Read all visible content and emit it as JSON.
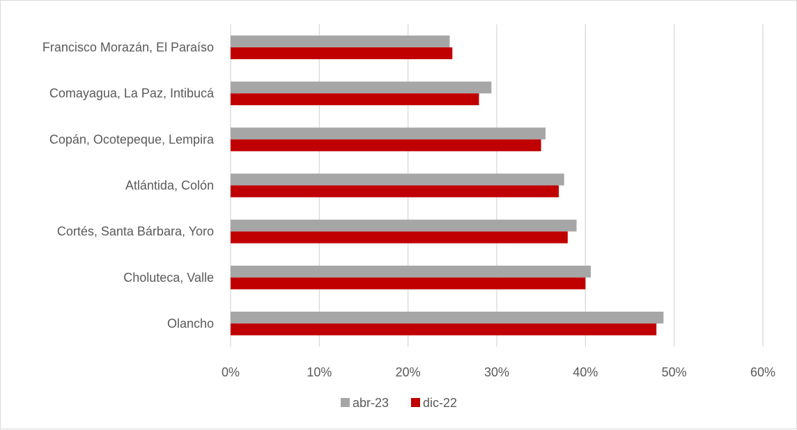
{
  "chart_data": {
    "type": "bar",
    "orientation": "horizontal",
    "title": "",
    "xlabel": "",
    "ylabel": "",
    "xlim": [
      0,
      0.6
    ],
    "x_ticks": [
      "0%",
      "10%",
      "20%",
      "30%",
      "40%",
      "50%",
      "60%"
    ],
    "x_tick_values": [
      0,
      0.1,
      0.2,
      0.3,
      0.4,
      0.5,
      0.6
    ],
    "grid": true,
    "legend_position": "bottom",
    "categories": [
      "Francisco Morazán, El Paraíso",
      "Comayagua, La Paz, Intibucá",
      "Copán, Ocotepeque, Lempira",
      "Atlántida, Colón",
      "Cortés, Santa Bárbara, Yoro",
      "Choluteca, Valle",
      "Olancho"
    ],
    "series": [
      {
        "name": "abr-23",
        "color": "#a6a6a6",
        "values": [
          0.247,
          0.294,
          0.355,
          0.376,
          0.39,
          0.406,
          0.488
        ]
      },
      {
        "name": "dic-22",
        "color": "#c00000",
        "values": [
          0.25,
          0.28,
          0.35,
          0.37,
          0.38,
          0.4,
          0.48
        ]
      }
    ]
  }
}
